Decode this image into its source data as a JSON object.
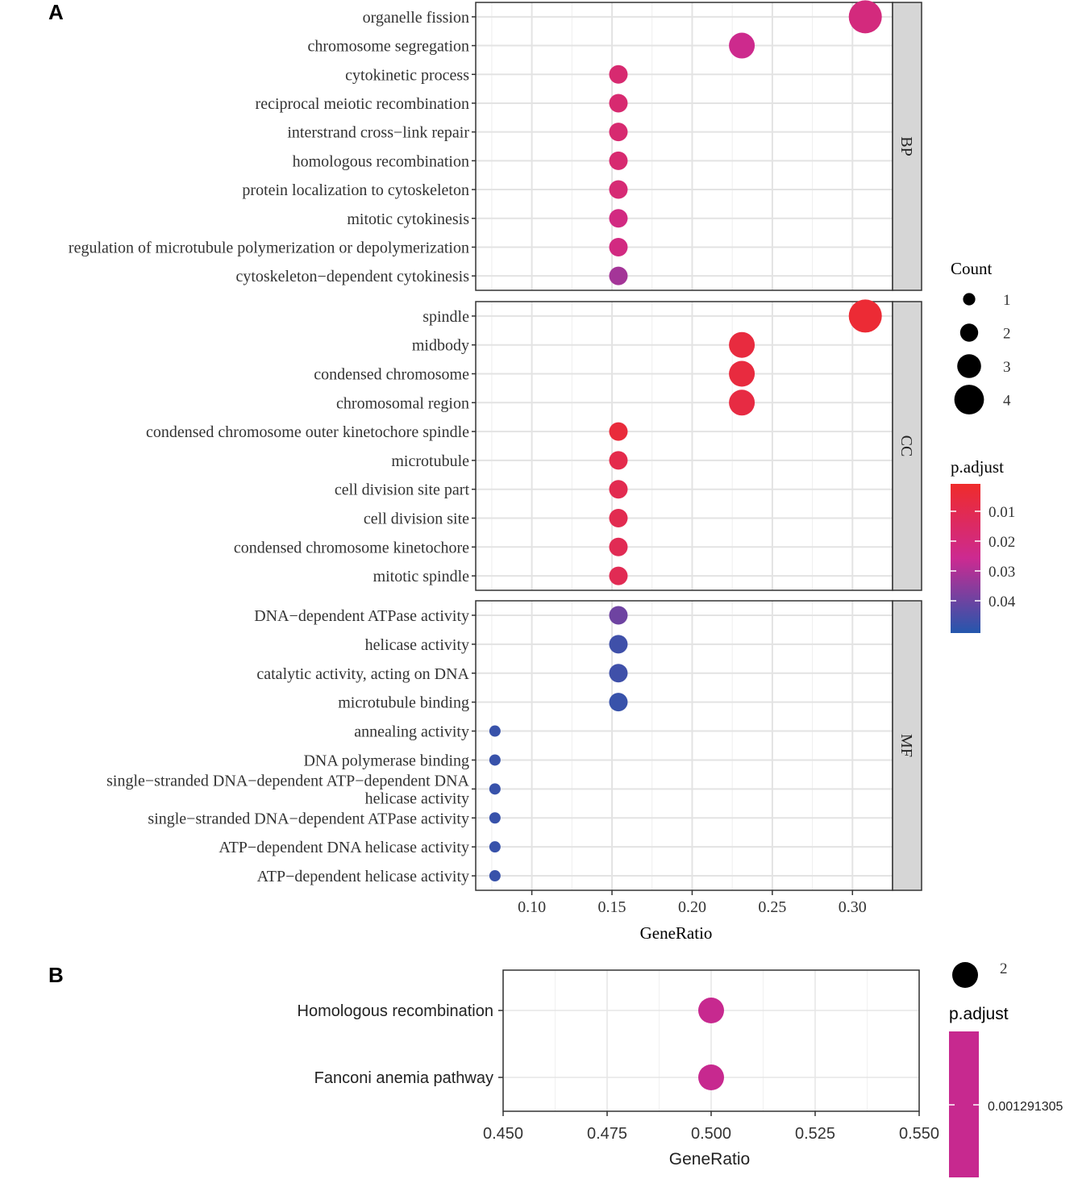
{
  "chart_data": [
    {
      "panel": "A",
      "type": "scatter",
      "xlabel": "GeneRatio",
      "xlim": [
        0.065,
        0.325
      ],
      "x_ticks": [
        "0.10",
        "0.15",
        "0.20",
        "0.25",
        "0.30"
      ],
      "x_tick_values": [
        0.1,
        0.15,
        0.2,
        0.25,
        0.3
      ],
      "facets": [
        {
          "name": "BP",
          "terms": [
            {
              "label": [
                "organelle fission"
              ],
              "gene_ratio": 0.308,
              "count": 4,
              "p_adjust": 0.02
            },
            {
              "label": [
                "chromosome segregation"
              ],
              "gene_ratio": 0.231,
              "count": 3,
              "p_adjust": 0.024
            },
            {
              "label": [
                "cytokinetic process"
              ],
              "gene_ratio": 0.154,
              "count": 2,
              "p_adjust": 0.017
            },
            {
              "label": [
                "reciprocal meiotic recombination"
              ],
              "gene_ratio": 0.154,
              "count": 2,
              "p_adjust": 0.017
            },
            {
              "label": [
                "interstrand cross−link repair"
              ],
              "gene_ratio": 0.154,
              "count": 2,
              "p_adjust": 0.017
            },
            {
              "label": [
                "homologous recombination"
              ],
              "gene_ratio": 0.154,
              "count": 2,
              "p_adjust": 0.017
            },
            {
              "label": [
                "protein localization to cytoskeleton"
              ],
              "gene_ratio": 0.154,
              "count": 2,
              "p_adjust": 0.018
            },
            {
              "label": [
                "mitotic cytokinesis"
              ],
              "gene_ratio": 0.154,
              "count": 2,
              "p_adjust": 0.021
            },
            {
              "label": [
                "regulation of microtubule polymerization or depolymerization"
              ],
              "gene_ratio": 0.154,
              "count": 2,
              "p_adjust": 0.021
            },
            {
              "label": [
                "cytoskeleton−dependent cytokinesis"
              ],
              "gene_ratio": 0.154,
              "count": 2,
              "p_adjust": 0.031
            }
          ]
        },
        {
          "name": "CC",
          "terms": [
            {
              "label": [
                "spindle"
              ],
              "gene_ratio": 0.308,
              "count": 4,
              "p_adjust": 0.0025
            },
            {
              "label": [
                "midbody"
              ],
              "gene_ratio": 0.231,
              "count": 3,
              "p_adjust": 0.005
            },
            {
              "label": [
                "condensed chromosome"
              ],
              "gene_ratio": 0.231,
              "count": 3,
              "p_adjust": 0.005
            },
            {
              "label": [
                "chromosomal region"
              ],
              "gene_ratio": 0.231,
              "count": 3,
              "p_adjust": 0.006
            },
            {
              "label": [
                "condensed chromosome outer kinetochore spindle"
              ],
              "gene_ratio": 0.154,
              "count": 2,
              "p_adjust": 0.004
            },
            {
              "label": [
                "microtubule"
              ],
              "gene_ratio": 0.154,
              "count": 2,
              "p_adjust": 0.008
            },
            {
              "label": [
                "cell division site part"
              ],
              "gene_ratio": 0.154,
              "count": 2,
              "p_adjust": 0.009
            },
            {
              "label": [
                "cell division site"
              ],
              "gene_ratio": 0.154,
              "count": 2,
              "p_adjust": 0.009
            },
            {
              "label": [
                "condensed chromosome kinetochore"
              ],
              "gene_ratio": 0.154,
              "count": 2,
              "p_adjust": 0.01
            },
            {
              "label": [
                "mitotic spindle"
              ],
              "gene_ratio": 0.154,
              "count": 2,
              "p_adjust": 0.01
            }
          ]
        },
        {
          "name": "MF",
          "terms": [
            {
              "label": [
                "DNA−dependent ATPase activity"
              ],
              "gene_ratio": 0.154,
              "count": 2,
              "p_adjust": 0.039
            },
            {
              "label": [
                "helicase activity"
              ],
              "gene_ratio": 0.154,
              "count": 2,
              "p_adjust": 0.046
            },
            {
              "label": [
                "catalytic activity, acting on DNA"
              ],
              "gene_ratio": 0.154,
              "count": 2,
              "p_adjust": 0.046
            },
            {
              "label": [
                "microtubule binding"
              ],
              "gene_ratio": 0.154,
              "count": 2,
              "p_adjust": 0.047
            },
            {
              "label": [
                "annealing activity"
              ],
              "gene_ratio": 0.077,
              "count": 1,
              "p_adjust": 0.047
            },
            {
              "label": [
                "DNA polymerase binding"
              ],
              "gene_ratio": 0.077,
              "count": 1,
              "p_adjust": 0.047
            },
            {
              "label": [
                "single−stranded DNA−dependent ATP−dependent DNA",
                "helicase activity"
              ],
              "gene_ratio": 0.077,
              "count": 1,
              "p_adjust": 0.047
            },
            {
              "label": [
                "single−stranded DNA−dependent ATPase activity"
              ],
              "gene_ratio": 0.077,
              "count": 1,
              "p_adjust": 0.047
            },
            {
              "label": [
                "ATP−dependent DNA helicase activity"
              ],
              "gene_ratio": 0.077,
              "count": 1,
              "p_adjust": 0.047
            },
            {
              "label": [
                "ATP−dependent helicase activity"
              ],
              "gene_ratio": 0.077,
              "count": 1,
              "p_adjust": 0.047
            }
          ]
        }
      ],
      "legend": {
        "size_title": "Count",
        "sizes": [
          {
            "label": "1",
            "count": 1
          },
          {
            "label": "2",
            "count": 2
          },
          {
            "label": "3",
            "count": 3
          },
          {
            "label": "4",
            "count": 4
          }
        ],
        "color_title": "p.adjust",
        "color_ticks": [
          {
            "label": "0.01",
            "value": 0.01
          },
          {
            "label": "0.02",
            "value": 0.02
          },
          {
            "label": "0.03",
            "value": 0.03
          },
          {
            "label": "0.04",
            "value": 0.04
          }
        ],
        "color_range": [
          0.0,
          0.05
        ],
        "low_color": "#ef2b2b",
        "mid_color": "#cc2a91",
        "high_color": "#2457ad"
      }
    },
    {
      "panel": "B",
      "type": "scatter",
      "xlabel": "GeneRatio",
      "xlim": [
        0.45,
        0.55
      ],
      "x_ticks": [
        "0.450",
        "0.475",
        "0.500",
        "0.525",
        "0.550"
      ],
      "x_tick_values": [
        0.45,
        0.475,
        0.5,
        0.525,
        0.55
      ],
      "terms": [
        {
          "label": "Homologous recombination",
          "gene_ratio": 0.5,
          "count": 2,
          "p_adjust": 0.001291305
        },
        {
          "label": "Fanconi anemia pathway",
          "gene_ratio": 0.5,
          "count": 2,
          "p_adjust": 0.001291305
        }
      ],
      "legend": {
        "size_label": "2",
        "color_title": "p.adjust",
        "color_tick": "0.001291305",
        "color": "#c7298f"
      }
    }
  ],
  "panel_labels": [
    "A",
    "B"
  ]
}
